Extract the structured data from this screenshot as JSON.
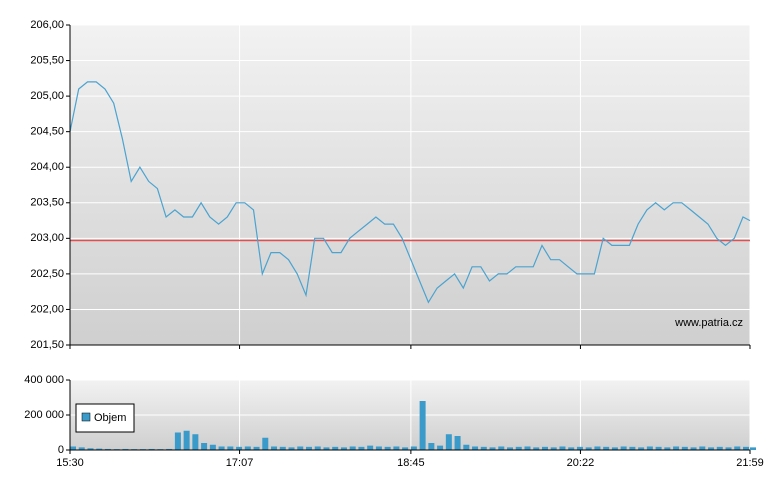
{
  "chart_data": [
    {
      "type": "line",
      "color": "#4aa3d0",
      "x": [
        "15:30",
        "15:35",
        "15:40",
        "15:45",
        "15:50",
        "15:55",
        "16:00",
        "16:05",
        "16:10",
        "16:15",
        "16:20",
        "16:25",
        "16:30",
        "16:35",
        "16:40",
        "16:45",
        "16:50",
        "16:55",
        "17:00",
        "17:05",
        "17:10",
        "17:15",
        "17:20",
        "17:25",
        "17:30",
        "17:35",
        "17:40",
        "17:45",
        "17:50",
        "17:55",
        "18:00",
        "18:05",
        "18:10",
        "18:15",
        "18:20",
        "18:25",
        "18:30",
        "18:35",
        "18:40",
        "18:45",
        "18:50",
        "18:55",
        "19:00",
        "19:05",
        "19:10",
        "19:15",
        "19:20",
        "19:25",
        "19:30",
        "19:35",
        "19:40",
        "19:45",
        "19:50",
        "19:55",
        "20:00",
        "20:05",
        "20:10",
        "20:15",
        "20:20",
        "20:25",
        "20:30",
        "20:35",
        "20:40",
        "20:45",
        "20:50",
        "20:55",
        "21:00",
        "21:05",
        "21:10",
        "21:15",
        "21:20",
        "21:25",
        "21:30",
        "21:35",
        "21:40",
        "21:45",
        "21:50",
        "21:55",
        "21:59"
      ],
      "values": [
        204.5,
        205.1,
        205.2,
        205.2,
        205.1,
        204.9,
        204.4,
        203.8,
        204.0,
        203.8,
        203.7,
        203.3,
        203.4,
        203.3,
        203.3,
        203.5,
        203.3,
        203.2,
        203.3,
        203.5,
        203.5,
        203.4,
        202.5,
        202.8,
        202.8,
        202.7,
        202.5,
        202.2,
        203.0,
        203.0,
        202.8,
        202.8,
        203.0,
        203.1,
        203.2,
        203.3,
        203.2,
        203.2,
        203.0,
        202.7,
        202.4,
        202.1,
        202.3,
        202.4,
        202.5,
        202.3,
        202.6,
        202.6,
        202.4,
        202.5,
        202.5,
        202.6,
        202.6,
        202.6,
        202.9,
        202.7,
        202.7,
        202.6,
        202.5,
        202.5,
        202.5,
        203.0,
        202.9,
        202.9,
        202.9,
        203.2,
        203.4,
        203.5,
        203.4,
        203.5,
        203.5,
        203.4,
        203.3,
        203.2,
        203.0,
        202.9,
        203.0,
        203.3,
        203.25
      ],
      "reference_line": 202.97,
      "reference_color": "#e05050",
      "ylim": [
        201.5,
        206
      ],
      "yticks": [
        {
          "value": 201.5,
          "label": "201,50"
        },
        {
          "value": 202,
          "label": "202,00"
        },
        {
          "value": 202.5,
          "label": "202,50"
        },
        {
          "value": 203,
          "label": "203,00"
        },
        {
          "value": 203.5,
          "label": "203,50"
        },
        {
          "value": 204,
          "label": "204,00"
        },
        {
          "value": 204.5,
          "label": "204,50"
        },
        {
          "value": 205,
          "label": "205,00"
        },
        {
          "value": 205.5,
          "label": "205,50"
        },
        {
          "value": 206,
          "label": "206,00"
        }
      ],
      "watermark": "www.patria.cz",
      "grid": true
    },
    {
      "type": "bar",
      "x": [
        "15:30",
        "15:35",
        "15:40",
        "15:45",
        "15:50",
        "15:55",
        "16:00",
        "16:05",
        "16:10",
        "16:15",
        "16:20",
        "16:25",
        "16:30",
        "16:35",
        "16:40",
        "16:45",
        "16:50",
        "16:55",
        "17:00",
        "17:05",
        "17:10",
        "17:15",
        "17:20",
        "17:25",
        "17:30",
        "17:35",
        "17:40",
        "17:45",
        "17:50",
        "17:55",
        "18:00",
        "18:05",
        "18:10",
        "18:15",
        "18:20",
        "18:25",
        "18:30",
        "18:35",
        "18:40",
        "18:45",
        "18:50",
        "18:55",
        "19:00",
        "19:05",
        "19:10",
        "19:15",
        "19:20",
        "19:25",
        "19:30",
        "19:35",
        "19:40",
        "19:45",
        "19:50",
        "19:55",
        "20:00",
        "20:05",
        "20:10",
        "20:15",
        "20:20",
        "20:25",
        "20:30",
        "20:35",
        "20:40",
        "20:45",
        "20:50",
        "20:55",
        "21:00",
        "21:05",
        "21:10",
        "21:15",
        "21:20",
        "21:25",
        "21:30",
        "21:35",
        "21:40",
        "21:45",
        "21:50",
        "21:55",
        "21:59"
      ],
      "series": [
        {
          "name": "Objem",
          "color": "#3a9ac9",
          "values": [
            20000,
            15000,
            10000,
            8000,
            6000,
            5000,
            6000,
            5000,
            5000,
            6000,
            5000,
            6000,
            100000,
            110000,
            90000,
            40000,
            30000,
            20000,
            20000,
            18000,
            20000,
            18000,
            70000,
            20000,
            18000,
            15000,
            20000,
            18000,
            20000,
            15000,
            18000,
            15000,
            20000,
            18000,
            25000,
            20000,
            18000,
            20000,
            15000,
            20000,
            280000,
            40000,
            25000,
            90000,
            80000,
            30000,
            20000,
            18000,
            15000,
            20000,
            15000,
            18000,
            20000,
            15000,
            18000,
            15000,
            20000,
            15000,
            18000,
            15000,
            20000,
            18000,
            15000,
            20000,
            18000,
            15000,
            20000,
            18000,
            15000,
            20000,
            18000,
            15000,
            20000,
            15000,
            18000,
            15000,
            20000,
            18000,
            15000
          ]
        }
      ],
      "ylim": [
        0,
        400000
      ],
      "yticks": [
        0,
        {
          "value": 200000,
          "label": "200 000"
        },
        {
          "value": 400000,
          "label": "400 000"
        }
      ],
      "xlim": [
        "15:30",
        "21:59"
      ],
      "xticks": [
        "15:30",
        "17:07",
        "18:45",
        "20:22",
        "21:59"
      ],
      "legend": "left",
      "grid": true
    }
  ]
}
